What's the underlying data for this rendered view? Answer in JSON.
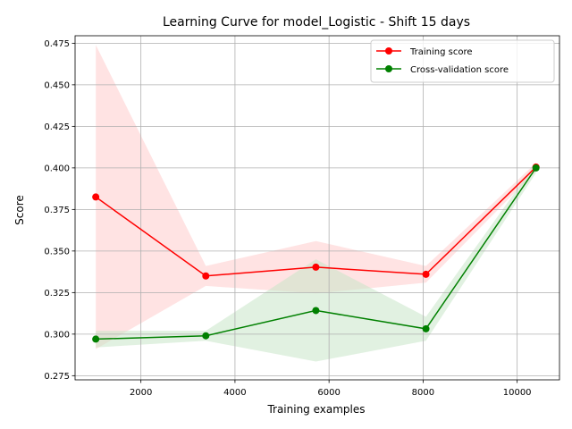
{
  "chart_data": {
    "type": "line",
    "title": "Learning Curve for model_Logistic - Shift 15 days",
    "xlabel": "Training examples",
    "ylabel": "Score",
    "xlim": [
      600,
      10900
    ],
    "ylim": [
      0.2725,
      0.4795
    ],
    "grid": true,
    "legend_position": "top-right",
    "x": [
      1040,
      3380,
      5720,
      8060,
      10400
    ],
    "x_ticks": [
      2000,
      4000,
      6000,
      8000,
      10000
    ],
    "x_tick_labels": [
      "2000",
      "4000",
      "6000",
      "8000",
      "10000"
    ],
    "y_ticks": [
      0.275,
      0.3,
      0.325,
      0.35,
      0.375,
      0.4,
      0.425,
      0.45,
      0.475
    ],
    "y_tick_labels": [
      "0.275",
      "0.300",
      "0.325",
      "0.350",
      "0.375",
      "0.400",
      "0.425",
      "0.450",
      "0.475"
    ],
    "series": [
      {
        "name": "Training score",
        "color": "#ff0000",
        "fill_color": "#ffcccc",
        "values": [
          0.3825,
          0.335,
          0.3403,
          0.336,
          0.4005
        ],
        "band_upper": [
          0.474,
          0.341,
          0.356,
          0.341,
          0.403
        ],
        "band_lower": [
          0.291,
          0.329,
          0.3245,
          0.331,
          0.398
        ]
      },
      {
        "name": "Cross-validation score",
        "color": "#008000",
        "fill_color": "#c8e6c8",
        "values": [
          0.297,
          0.299,
          0.3142,
          0.3032,
          0.4
        ],
        "band_upper": [
          0.302,
          0.302,
          0.345,
          0.3105,
          0.403
        ],
        "band_lower": [
          0.292,
          0.296,
          0.2835,
          0.296,
          0.397
        ]
      }
    ]
  }
}
